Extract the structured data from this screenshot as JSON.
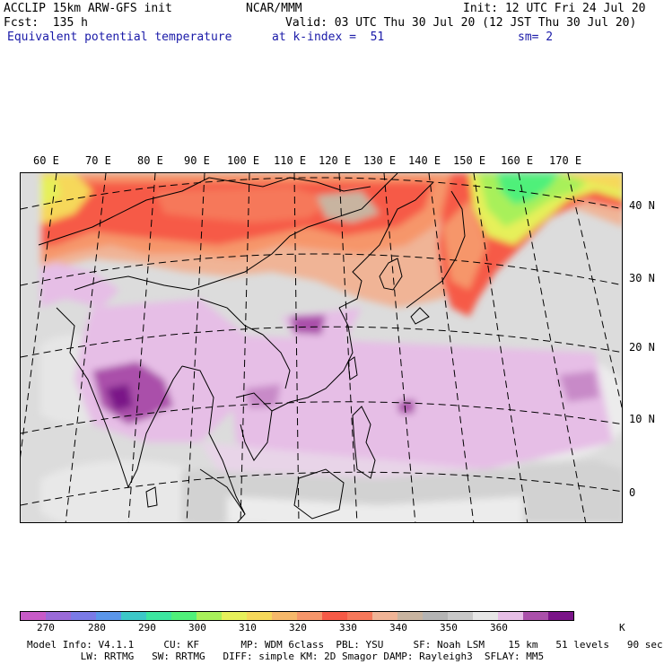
{
  "header": {
    "left_line1": "ACCLIP 15km ARW-GFS init",
    "center_line1": "NCAR/MMM",
    "right_line1": "Init: 12 UTC Fri 24 Jul 20",
    "left_line2": "Fcst:  135 h",
    "right_line2": "Valid: 03 UTC Thu 30 Jul 20 (12 JST Thu 30 Jul 20)",
    "field_name": "Equivalent potential temperature",
    "level": "at k-index =  51",
    "smoothing": "sm= 2"
  },
  "map": {
    "lon_labels": [
      "60 E",
      "70 E",
      "80 E",
      "90 E",
      "100 E",
      "110 E",
      "120 E",
      "130 E",
      "140 E",
      "150 E",
      "160 E",
      "170 E"
    ],
    "lat_labels": [
      "40 N",
      "30 N",
      "20 N",
      "10 N",
      "0"
    ]
  },
  "colorbar": {
    "colors": [
      "#c85ac8",
      "#9a6ad8",
      "#7a7ae6",
      "#5a96ea",
      "#3cc8c8",
      "#3ce6a0",
      "#50f07a",
      "#a8f05a",
      "#e6f05a",
      "#f6d85a",
      "#f6b86a",
      "#f6966a",
      "#f65a46",
      "#f6785a",
      "#f0b496",
      "#c8b4a0",
      "#b4b4b4",
      "#c8c8c8",
      "#e6e6e6",
      "#e6bee6",
      "#aa50aa",
      "#7a1488"
    ],
    "labels": [
      "270",
      "280",
      "290",
      "300",
      "310",
      "320",
      "330",
      "340",
      "350",
      "360"
    ],
    "unit": "K"
  },
  "footer": {
    "line1": "Model Info: V4.1.1     CU: KF       MP: WDM 6class  PBL: YSU     SF: Noah LSM    15 km   51 levels   90 sec",
    "line2": "         LW: RRTMG   SW: RRTMG   DIFF: simple KM: 2D Smagor DAMP: Rayleigh3  SFLAY: MM5"
  }
}
